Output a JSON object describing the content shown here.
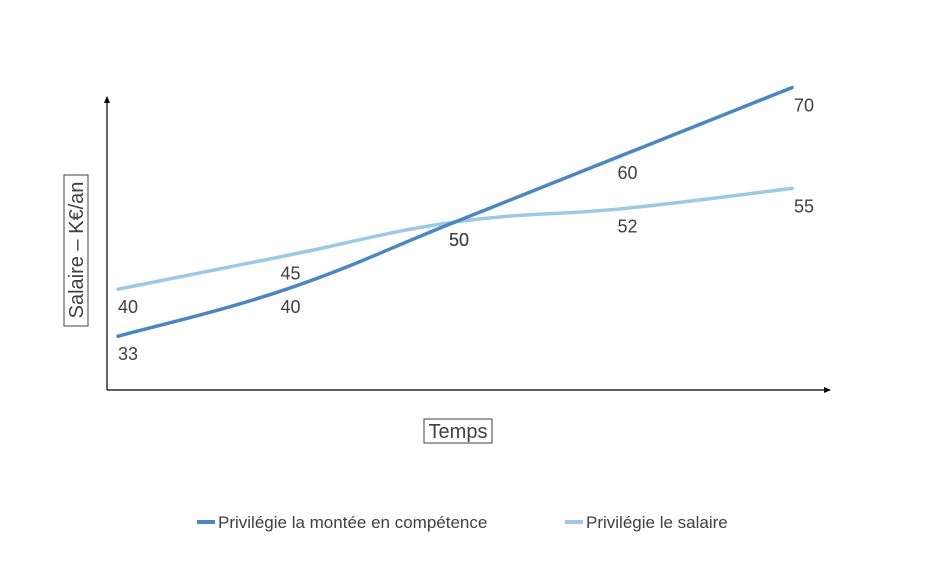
{
  "chart_data": {
    "type": "line",
    "xlabel": "Temps",
    "ylabel": "Salaire – K€/an",
    "x": [
      0,
      1,
      2,
      3,
      4
    ],
    "ylim": [
      25,
      75
    ],
    "grid": false,
    "legend_position": "bottom",
    "series": [
      {
        "name": "Privilégie la montée en compétence",
        "color": "#4a86c0",
        "values": [
          33,
          40,
          50,
          60,
          70
        ]
      },
      {
        "name": "Privilégie le salaire",
        "color": "#9cc9e6",
        "values": [
          40,
          45,
          50,
          52,
          55
        ]
      }
    ]
  }
}
